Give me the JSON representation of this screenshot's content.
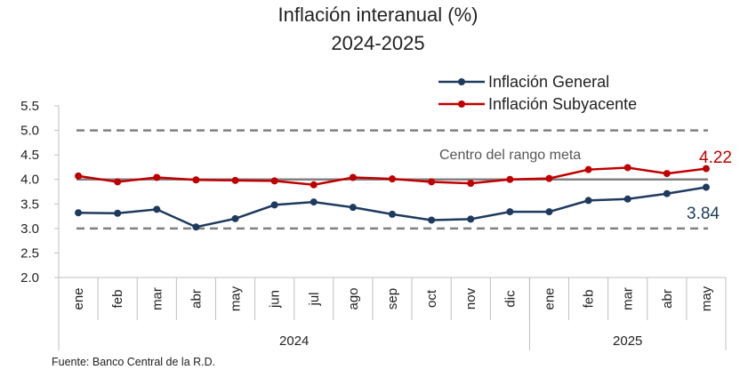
{
  "chart_data": {
    "type": "line",
    "title": "Inflación interanual (%)",
    "subtitle": "2024-2025",
    "categories": [
      "ene",
      "feb",
      "mar",
      "abr",
      "may",
      "jun",
      "jul",
      "ago",
      "sep",
      "oct",
      "nov",
      "dic",
      "ene",
      "feb",
      "mar",
      "abr",
      "may"
    ],
    "year_groups": [
      {
        "label": "2024",
        "count": 12
      },
      {
        "label": "2025",
        "count": 5
      }
    ],
    "y_ticks": [
      "5.5",
      "5.0",
      "4.5",
      "4.0",
      "3.5",
      "3.0",
      "2.5",
      "2.0"
    ],
    "ylim": [
      2.0,
      5.5
    ],
    "series": [
      {
        "name": "Inflación General",
        "color": "#1f3a5f",
        "values": [
          3.32,
          3.31,
          3.39,
          3.03,
          3.2,
          3.48,
          3.54,
          3.43,
          3.29,
          3.17,
          3.19,
          3.34,
          3.34,
          3.57,
          3.6,
          3.71,
          3.84
        ],
        "end_label": "3.84"
      },
      {
        "name": "Inflación Subyacente",
        "color": "#c00000",
        "values": [
          4.07,
          3.95,
          4.04,
          3.99,
          3.98,
          3.97,
          3.89,
          4.04,
          4.01,
          3.95,
          3.92,
          4.0,
          4.02,
          4.2,
          4.24,
          4.12,
          4.22
        ],
        "end_label": "4.22"
      }
    ],
    "reference_lines": [
      {
        "value": 5.0,
        "style": "dashed"
      },
      {
        "value": 4.0,
        "style": "solid"
      },
      {
        "value": 3.0,
        "style": "dashed"
      }
    ],
    "annotation": "Centro del rango meta",
    "legend_position": "top-right",
    "grid": false
  },
  "source": "Fuente: Banco Central de la R.D."
}
